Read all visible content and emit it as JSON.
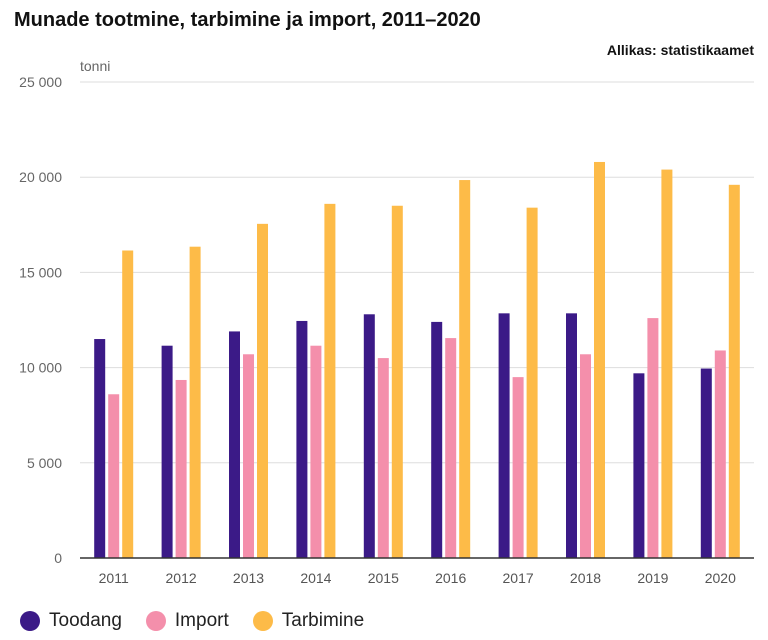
{
  "header": {
    "title": "Munade tootmine, tarbimine ja import, 2011–2020",
    "source": "Allikas: statistikaamet"
  },
  "colors": {
    "toodang": "#3b1a87",
    "import": "#f48fab",
    "tarbimine": "#fdbb48",
    "grid": "#dddddd",
    "axis": "#333333"
  },
  "chart_data": {
    "type": "bar",
    "title": "Munade tootmine, tarbimine ja import, 2011–2020",
    "ylabel": "tonni",
    "xlabel": "",
    "ylim": [
      0,
      25000
    ],
    "yticks": [
      0,
      5000,
      10000,
      15000,
      20000,
      25000
    ],
    "ytick_labels": [
      "0",
      "5 000",
      "10 000",
      "15 000",
      "20 000",
      "25 000"
    ],
    "grid": true,
    "legend_position": "bottom-left",
    "categories": [
      "2011",
      "2012",
      "2013",
      "2014",
      "2015",
      "2016",
      "2017",
      "2018",
      "2019",
      "2020"
    ],
    "series": [
      {
        "name": "Toodang",
        "color": "#3b1a87",
        "values": [
          11500,
          11150,
          11900,
          12450,
          12800,
          12400,
          12850,
          12850,
          9700,
          9950
        ]
      },
      {
        "name": "Import",
        "color": "#f48fab",
        "values": [
          8600,
          9350,
          10700,
          11150,
          10500,
          11550,
          9500,
          10700,
          12600,
          10900
        ]
      },
      {
        "name": "Tarbimine",
        "color": "#fdbb48",
        "values": [
          16150,
          16350,
          17550,
          18600,
          18500,
          19850,
          18400,
          20800,
          20400,
          19600
        ]
      }
    ]
  }
}
